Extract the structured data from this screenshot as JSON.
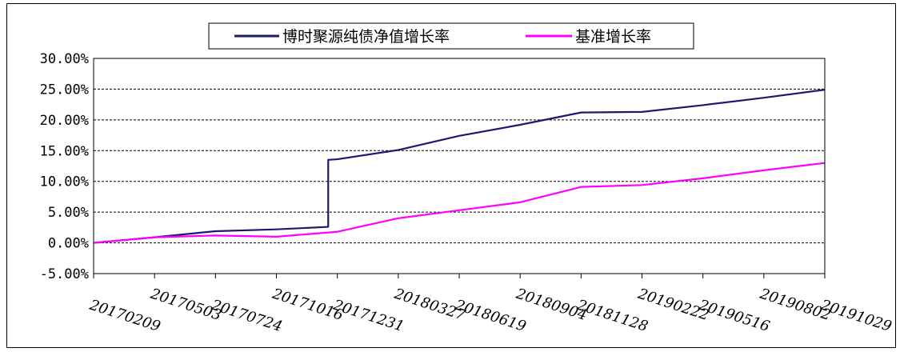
{
  "chart_data": {
    "type": "line",
    "x": [
      "20170209",
      "20170503",
      "20170724",
      "20171016",
      "20171231",
      "20180327",
      "20180619",
      "20180904",
      "20181128",
      "20190222",
      "20190516",
      "20190802",
      "20191029"
    ],
    "series": [
      {
        "name": "博时聚源纯债净值增长率",
        "color": "#1a1a6e",
        "values": [
          0.0,
          0.9,
          1.9,
          2.2,
          13.6,
          15.1,
          17.4,
          19.2,
          21.2,
          21.3,
          22.4,
          23.6,
          24.9
        ]
      },
      {
        "name": "基准增长率",
        "color": "#ff00ff",
        "values": [
          0.0,
          0.9,
          1.2,
          1.0,
          1.8,
          4.0,
          5.3,
          6.6,
          9.1,
          9.4,
          10.5,
          11.8,
          13.0
        ]
      }
    ],
    "y_ticks": [
      "30.00%",
      "25.00%",
      "20.00%",
      "15.00%",
      "10.00%",
      "5.00%",
      "0.00%",
      "-5.00%"
    ],
    "ylim": [
      -5,
      30
    ],
    "grid": "horizontal dashed",
    "legend_position": "top-center"
  }
}
